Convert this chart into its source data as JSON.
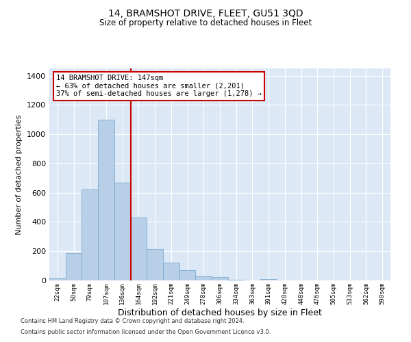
{
  "title": "14, BRAMSHOT DRIVE, FLEET, GU51 3QD",
  "subtitle": "Size of property relative to detached houses in Fleet",
  "xlabel": "Distribution of detached houses by size in Fleet",
  "ylabel": "Number of detached properties",
  "categories": [
    "22sqm",
    "50sqm",
    "79sqm",
    "107sqm",
    "136sqm",
    "164sqm",
    "192sqm",
    "221sqm",
    "249sqm",
    "278sqm",
    "306sqm",
    "334sqm",
    "363sqm",
    "391sqm",
    "420sqm",
    "448sqm",
    "476sqm",
    "505sqm",
    "533sqm",
    "562sqm",
    "590sqm"
  ],
  "values": [
    13,
    185,
    620,
    1100,
    670,
    430,
    215,
    120,
    70,
    30,
    25,
    5,
    0,
    10,
    0,
    0,
    0,
    0,
    0,
    0,
    0
  ],
  "bar_color": "#b8cfe8",
  "bar_edgecolor": "#7aaacf",
  "vline_color": "#cc0000",
  "vline_pos": 4.5,
  "annotation_text": "14 BRAMSHOT DRIVE: 147sqm\n← 63% of detached houses are smaller (2,201)\n37% of semi-detached houses are larger (1,278) →",
  "annotation_box_edgecolor": "#cc0000",
  "plot_background": "#dce8f5",
  "ylim": [
    0,
    1450
  ],
  "yticks": [
    0,
    200,
    400,
    600,
    800,
    1000,
    1200,
    1400
  ],
  "footer1": "Contains HM Land Registry data © Crown copyright and database right 2024.",
  "footer2": "Contains public sector information licensed under the Open Government Licence v3.0.",
  "title_fontsize": 10,
  "subtitle_fontsize": 8.5,
  "ylabel_fontsize": 8,
  "xlabel_fontsize": 9,
  "tick_fontsize": 6.5,
  "annotation_fontsize": 7.5,
  "footer_fontsize": 6
}
